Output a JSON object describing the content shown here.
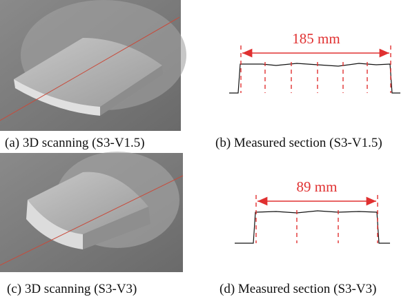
{
  "panels": [
    {
      "caption": "(a) 3D scanning (S3-V1.5)"
    },
    {
      "caption": "(b) Measured section (S3-V1.5)",
      "dimension": "185 mm"
    },
    {
      "caption": "(c) 3D scanning (S3-V3)"
    },
    {
      "caption": "(d) Measured section (S3-V3)",
      "dimension": "89 mm"
    }
  ]
}
